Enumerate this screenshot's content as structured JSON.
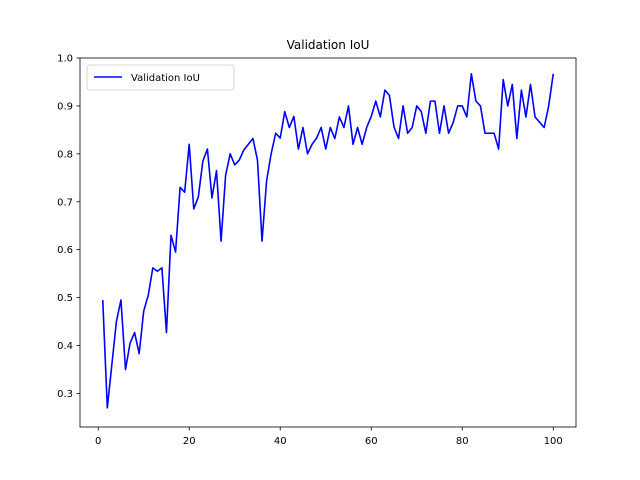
{
  "chart_data": {
    "type": "line",
    "title": "Validation IoU",
    "xlabel": "",
    "ylabel": "",
    "xlim": [
      -4,
      105
    ],
    "ylim": [
      0.23,
      1.0
    ],
    "xticks": [
      0,
      20,
      40,
      60,
      80,
      100
    ],
    "yticks": [
      0.3,
      0.4,
      0.5,
      0.6,
      0.7,
      0.8,
      0.9,
      1.0
    ],
    "xtick_labels": [
      "0",
      "20",
      "40",
      "60",
      "80",
      "100"
    ],
    "ytick_labels": [
      "0.3",
      "0.4",
      "0.5",
      "0.6",
      "0.7",
      "0.8",
      "0.9",
      "1.0"
    ],
    "grid": false,
    "legend_position": "upper-left",
    "series": [
      {
        "name": "Validation IoU",
        "color": "#0000ff",
        "x": [
          1,
          2,
          3,
          4,
          5,
          6,
          7,
          8,
          9,
          10,
          11,
          12,
          13,
          14,
          15,
          16,
          17,
          18,
          19,
          20,
          21,
          22,
          23,
          24,
          25,
          26,
          27,
          28,
          29,
          30,
          31,
          32,
          33,
          34,
          35,
          36,
          37,
          38,
          39,
          40,
          41,
          42,
          43,
          44,
          45,
          46,
          47,
          48,
          49,
          50,
          51,
          52,
          53,
          54,
          55,
          56,
          57,
          58,
          59,
          60,
          61,
          62,
          63,
          64,
          65,
          66,
          67,
          68,
          69,
          70,
          71,
          72,
          73,
          74,
          75,
          76,
          77,
          78,
          79,
          80,
          81,
          82,
          83,
          84,
          85,
          86,
          87,
          88,
          89,
          90,
          91,
          92,
          93,
          94,
          95,
          96,
          97,
          98,
          99,
          100
        ],
        "y": [
          0.495,
          0.27,
          0.36,
          0.45,
          0.495,
          0.35,
          0.405,
          0.427,
          0.383,
          0.472,
          0.505,
          0.562,
          0.555,
          0.562,
          0.427,
          0.63,
          0.595,
          0.73,
          0.72,
          0.82,
          0.685,
          0.71,
          0.785,
          0.81,
          0.708,
          0.765,
          0.618,
          0.755,
          0.8,
          0.777,
          0.787,
          0.808,
          0.82,
          0.832,
          0.787,
          0.618,
          0.743,
          0.8,
          0.843,
          0.833,
          0.888,
          0.855,
          0.878,
          0.81,
          0.855,
          0.8,
          0.82,
          0.833,
          0.855,
          0.81,
          0.855,
          0.832,
          0.877,
          0.855,
          0.9,
          0.82,
          0.855,
          0.82,
          0.855,
          0.878,
          0.91,
          0.877,
          0.933,
          0.922,
          0.856,
          0.832,
          0.9,
          0.843,
          0.855,
          0.9,
          0.888,
          0.843,
          0.91,
          0.91,
          0.843,
          0.9,
          0.843,
          0.865,
          0.9,
          0.9,
          0.877,
          0.967,
          0.91,
          0.9,
          0.843,
          0.843,
          0.843,
          0.81,
          0.955,
          0.9,
          0.945,
          0.832,
          0.933,
          0.877,
          0.945,
          0.877,
          0.866,
          0.855,
          0.9,
          0.967
        ]
      }
    ]
  }
}
